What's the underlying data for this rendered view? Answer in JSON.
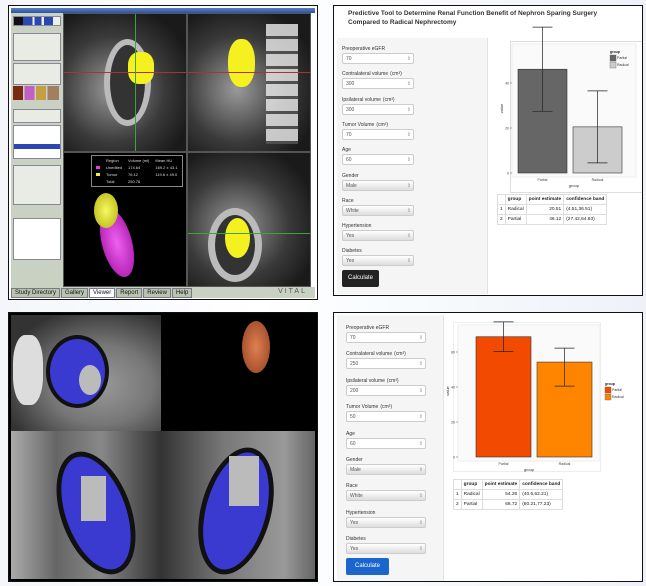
{
  "viewer": {
    "overlay": {
      "headers": [
        "Region",
        "Volume (ml)",
        "Mean HU"
      ],
      "rows": [
        {
          "region": "Unedited",
          "volume": "174.64",
          "mean": "169.2 ± 43.1",
          "color": "#e040e0"
        },
        {
          "region": "Tumor",
          "volume": "76.12",
          "mean": "119.6 ± 49.0",
          "color": "#f0f040"
        },
        {
          "region": "Total",
          "volume": "250.76",
          "mean": ""
        }
      ]
    },
    "bottom_tabs": [
      "Study Directory",
      "Gallery",
      "Viewer",
      "Report",
      "Review",
      "Help"
    ],
    "logo": "VITAL",
    "segment_color": "#f5f020",
    "kidney_3d_color": "#d020d0"
  },
  "segmentation": {
    "kidney_color": "#3a3ad0",
    "render_3d_color": "#c06020"
  },
  "tool_top": {
    "title": "Predictive Tool to Determine Renal Function Benefit of Nephron Sparing Surgery Compared to Radical Nephrectomy",
    "fields": [
      {
        "label": "Preoperative eGFR",
        "unit": "",
        "value": "70",
        "type": "number"
      },
      {
        "label": "Contralateral volume",
        "unit": "(cm³)",
        "value": "300",
        "type": "number"
      },
      {
        "label": "Ipsilateral volume",
        "unit": "(cm³)",
        "value": "300",
        "type": "number"
      },
      {
        "label": "Tumor Volume",
        "unit": "(cm³)",
        "value": "70",
        "type": "number"
      },
      {
        "label": "Age",
        "unit": "",
        "value": "60",
        "type": "number"
      },
      {
        "label": "Gender",
        "unit": "",
        "value": "Male",
        "type": "select"
      },
      {
        "label": "Race",
        "unit": "",
        "value": "White",
        "type": "select"
      },
      {
        "label": "Hypertension",
        "unit": "",
        "value": "Yes",
        "type": "select"
      },
      {
        "label": "Diabetes",
        "unit": "",
        "value": "Yes",
        "type": "select"
      }
    ],
    "button": "Calculate",
    "button_color": "#222222",
    "table": {
      "headers": [
        "",
        "group",
        "point estimate",
        "confidence band"
      ],
      "rows": [
        [
          "1",
          "Radical",
          "20.51",
          "(4.51,36.51)"
        ],
        [
          "2",
          "Partial",
          "46.12",
          "(27.42,64.83)"
        ]
      ]
    }
  },
  "tool_bottom": {
    "fields": [
      {
        "label": "Preoperative eGFR",
        "unit": "",
        "value": "70",
        "type": "number"
      },
      {
        "label": "Contralateral volume",
        "unit": "(cm³)",
        "value": "250",
        "type": "number"
      },
      {
        "label": "Ipsilateral volume",
        "unit": "(cm³)",
        "value": "200",
        "type": "number"
      },
      {
        "label": "Tumor Volume",
        "unit": "(cm³)",
        "value": "50",
        "type": "number"
      },
      {
        "label": "Age",
        "unit": "",
        "value": "60",
        "type": "number"
      },
      {
        "label": "Gender",
        "unit": "",
        "value": "Male",
        "type": "select"
      },
      {
        "label": "Race",
        "unit": "",
        "value": "White",
        "type": "select"
      },
      {
        "label": "Hypertension",
        "unit": "",
        "value": "Yes",
        "type": "select"
      },
      {
        "label": "Diabetes",
        "unit": "",
        "value": "Yes",
        "type": "select"
      }
    ],
    "button": "Calculate",
    "button_color": "#1a66cc",
    "table": {
      "headers": [
        "",
        "group",
        "point estimate",
        "confidence band"
      ],
      "rows": [
        [
          "1",
          "Radical",
          "54.26",
          "(40.5,62.21)"
        ],
        [
          "2",
          "Partial",
          "68.72",
          "(60.21,77.23)"
        ]
      ]
    }
  },
  "chart_data": [
    {
      "type": "bar",
      "xlabel": "group",
      "ylabel": "value",
      "categories": [
        "Partial",
        "Radical"
      ],
      "values": [
        46.12,
        20.51
      ],
      "error_low": [
        27.42,
        4.51
      ],
      "error_high": [
        64.83,
        36.51
      ],
      "colors": [
        "#666666",
        "#cccccc"
      ],
      "yticks": [
        "0",
        "20",
        "40"
      ],
      "ylim": [
        0,
        60
      ],
      "legend": {
        "title": "group",
        "entries": [
          "Partial",
          "Radical"
        ],
        "placement": "top-right"
      }
    },
    {
      "type": "bar",
      "xlabel": "group",
      "ylabel": "value",
      "categories": [
        "Partial",
        "Radical"
      ],
      "values": [
        68.72,
        54.26
      ],
      "error_low": [
        60.21,
        40.5
      ],
      "error_high": [
        77.23,
        62.21
      ],
      "colors": [
        "#f24a00",
        "#ff8400"
      ],
      "yticks": [
        "0",
        "20",
        "40",
        "60"
      ],
      "ylim": [
        0,
        80
      ],
      "legend": {
        "title": "group",
        "entries": [
          "Partial",
          "Radical"
        ],
        "placement": "right"
      }
    }
  ]
}
